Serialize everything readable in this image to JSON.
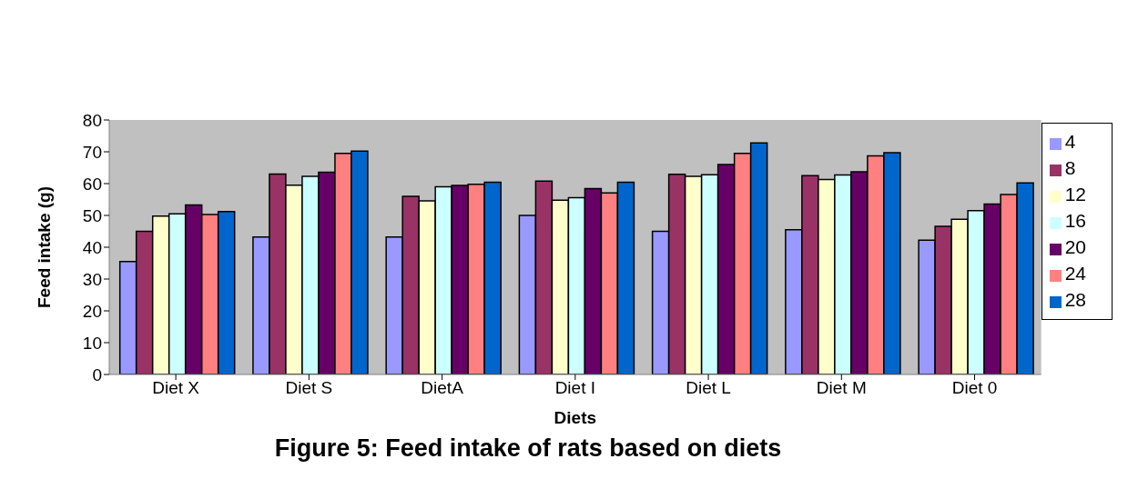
{
  "chart_data": {
    "type": "bar",
    "title": "Figure 5: Feed intake of rats based on diets",
    "xlabel": "Diets",
    "ylabel": "Feed intake (g)",
    "categories": [
      "Diet X",
      "Diet S",
      "DietA",
      "Diet I",
      "Diet L",
      "Diet M",
      "Diet 0"
    ],
    "series": [
      {
        "name": "4",
        "color": "#9999ff",
        "values": [
          35.5,
          43.2,
          43.2,
          50,
          45,
          45.5,
          42.2
        ]
      },
      {
        "name": "8",
        "color": "#993366",
        "values": [
          45,
          63,
          56,
          60.8,
          62.9,
          62.5,
          46.6
        ]
      },
      {
        "name": "12",
        "color": "#ffffcc",
        "values": [
          49.8,
          59.5,
          54.6,
          54.8,
          62.3,
          61.3,
          48.8
        ]
      },
      {
        "name": "16",
        "color": "#ccffff",
        "values": [
          50.5,
          62.3,
          59,
          55.6,
          62.8,
          62.7,
          51.5
        ]
      },
      {
        "name": "20",
        "color": "#660066",
        "values": [
          53.3,
          63.6,
          59.4,
          58.4,
          66,
          63.7,
          53.6
        ]
      },
      {
        "name": "24",
        "color": "#ff8080",
        "values": [
          50.3,
          69.5,
          59.8,
          57.1,
          69.5,
          68.7,
          56.6
        ]
      },
      {
        "name": "28",
        "color": "#0066cc",
        "values": [
          51.2,
          70.2,
          60.4,
          60.4,
          72.8,
          69.7,
          60.2
        ]
      }
    ],
    "ylim": [
      0,
      80
    ],
    "yticks": [
      0,
      10,
      20,
      30,
      40,
      50,
      60,
      70,
      80
    ],
    "grid": false,
    "legend": "right"
  }
}
